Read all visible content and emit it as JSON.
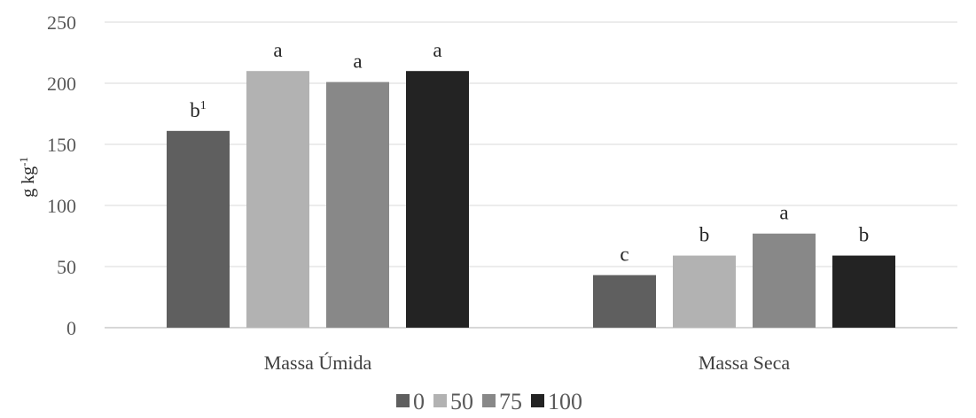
{
  "chart_data": {
    "type": "bar",
    "categories": [
      "Massa Úmida",
      "Massa Seca"
    ],
    "series": [
      {
        "name": "0",
        "color": "#5f5f5f",
        "values": [
          161,
          43
        ],
        "labels": [
          "b",
          "c"
        ]
      },
      {
        "name": "50",
        "color": "#b2b2b2",
        "values": [
          210,
          59
        ],
        "labels": [
          "a",
          "b"
        ]
      },
      {
        "name": "75",
        "color": "#888888",
        "values": [
          201,
          77
        ],
        "labels": [
          "a",
          "a"
        ]
      },
      {
        "name": "100",
        "color": "#232323",
        "values": [
          210,
          59
        ],
        "labels": [
          "a",
          "b"
        ]
      }
    ],
    "label_footnote": {
      "series": 0,
      "category": 0,
      "mark": "1"
    },
    "title": "",
    "xlabel": "",
    "ylabel": "g kg",
    "ylabel_superscript": "-1",
    "ylim": [
      0,
      250
    ],
    "yticks": [
      0,
      50,
      100,
      150,
      200,
      250
    ],
    "grid": true,
    "legend_position": "bottom"
  }
}
